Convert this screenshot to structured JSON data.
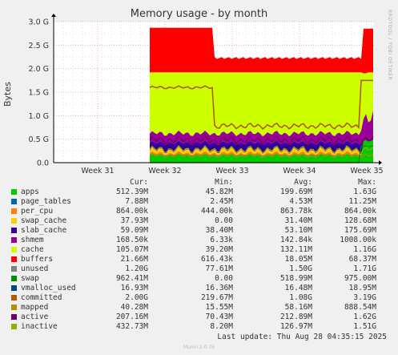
{
  "title": "Memory usage - by month",
  "side_tag": "RRDTOOL / TOBI OETIKER",
  "footer": {
    "last_update": "Last update: Thu Aug 28 04:35:15 2025",
    "munin": "Munin 2.0.76"
  },
  "legend_headers": {
    "cur": "Cur:",
    "min": "Min:",
    "avg": "Avg:",
    "max": "Max:"
  },
  "chart_data": {
    "type": "area",
    "title": "Memory usage - by month",
    "ylabel": "Bytes",
    "xlabel": "",
    "y_ticks": [
      "0.0",
      "0.5 G",
      "1.0 G",
      "1.5 G",
      "2.0 G",
      "2.5 G",
      "3.0 G"
    ],
    "y_tick_values": [
      0,
      0.5,
      1.0,
      1.5,
      2.0,
      2.5,
      3.0
    ],
    "ylim": [
      0,
      3.0
    ],
    "x_ticks": [
      "Week 31",
      "Week 32",
      "Week 33",
      "Week 34",
      "Week 35"
    ],
    "grid": true,
    "series": [
      {
        "name": "apps",
        "color": "#00cc00",
        "cur": "512.39M",
        "min": "45.82M",
        "avg": "199.69M",
        "max": "1.63G"
      },
      {
        "name": "page_tables",
        "color": "#0066b3",
        "cur": "7.88M",
        "min": "2.45M",
        "avg": "4.53M",
        "max": "11.25M"
      },
      {
        "name": "per_cpu",
        "color": "#ff8000",
        "cur": "864.00k",
        "min": "444.00k",
        "avg": "863.78k",
        "max": "864.00k"
      },
      {
        "name": "swap_cache",
        "color": "#ffcc00",
        "cur": "37.93M",
        "min": "0.00",
        "avg": "31.40M",
        "max": "128.68M"
      },
      {
        "name": "slab_cache",
        "color": "#330099",
        "cur": "59.09M",
        "min": "38.40M",
        "avg": "53.10M",
        "max": "175.69M"
      },
      {
        "name": "shmem",
        "color": "#990099",
        "cur": "168.50k",
        "min": "6.33k",
        "avg": "142.84k",
        "max": "1008.00k"
      },
      {
        "name": "cache",
        "color": "#ccff00",
        "cur": "105.07M",
        "min": "39.20M",
        "avg": "132.11M",
        "max": "1.16G"
      },
      {
        "name": "buffers",
        "color": "#ff0000",
        "cur": "21.66M",
        "min": "616.43k",
        "avg": "18.05M",
        "max": "68.37M"
      },
      {
        "name": "unused",
        "color": "#808080",
        "cur": "1.20G",
        "min": "77.61M",
        "avg": "1.50G",
        "max": "1.71G"
      },
      {
        "name": "swap",
        "color": "#008f00",
        "cur": "962.41M",
        "min": "0.00",
        "avg": "518.99M",
        "max": "975.00M"
      },
      {
        "name": "vmalloc_used",
        "color": "#00487d",
        "cur": "16.93M",
        "min": "16.36M",
        "avg": "16.48M",
        "max": "18.95M"
      },
      {
        "name": "committed",
        "color": "#b35a00",
        "cur": "2.00G",
        "min": "219.67M",
        "avg": "1.08G",
        "max": "3.19G"
      },
      {
        "name": "mapped",
        "color": "#b38f00",
        "cur": "40.28M",
        "min": "15.55M",
        "avg": "58.16M",
        "max": "888.54M"
      },
      {
        "name": "active",
        "color": "#6b006b",
        "cur": "207.16M",
        "min": "70.43M",
        "avg": "212.89M",
        "max": "1.62G"
      },
      {
        "name": "inactive",
        "color": "#8fb300",
        "cur": "432.73M",
        "min": "8.20M",
        "avg": "126.97M",
        "max": "1.51G"
      }
    ]
  }
}
